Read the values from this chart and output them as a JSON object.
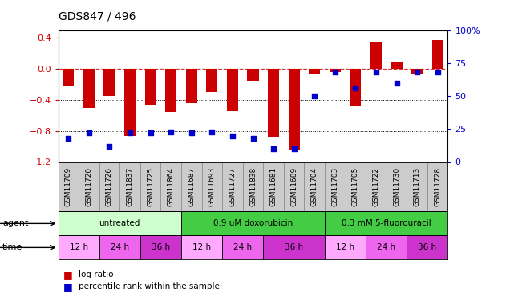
{
  "title": "GDS847 / 496",
  "samples": [
    "GSM11709",
    "GSM11720",
    "GSM11726",
    "GSM11837",
    "GSM11725",
    "GSM11864",
    "GSM11687",
    "GSM11693",
    "GSM11727",
    "GSM11838",
    "GSM11681",
    "GSM11689",
    "GSM11704",
    "GSM11703",
    "GSM11705",
    "GSM11722",
    "GSM11730",
    "GSM11713",
    "GSM11728"
  ],
  "log_ratio": [
    -0.22,
    -0.5,
    -0.35,
    -0.87,
    -0.46,
    -0.56,
    -0.44,
    -0.3,
    -0.55,
    -0.15,
    -0.88,
    -1.05,
    -0.06,
    -0.04,
    -0.47,
    0.35,
    0.09,
    -0.06,
    0.37
  ],
  "percentile_rank": [
    18,
    22,
    12,
    22,
    22,
    23,
    22,
    23,
    20,
    18,
    10,
    10,
    50,
    68,
    56,
    68,
    60,
    68,
    68
  ],
  "bar_color": "#cc0000",
  "dot_color": "#0000cc",
  "ylim_left": [
    -1.2,
    0.5
  ],
  "ylim_right": [
    0,
    100
  ],
  "yticks_left": [
    -1.2,
    -0.8,
    -0.4,
    0.0,
    0.4
  ],
  "yticks_right": [
    0,
    25,
    50,
    75,
    100
  ],
  "hline_y": 0.0,
  "dotlines": [
    -0.4,
    -0.8
  ],
  "agent_groups": [
    {
      "label": "untreated",
      "start": 0,
      "end": 6,
      "color": "#ccffcc"
    },
    {
      "label": "0.9 uM doxorubicin",
      "start": 6,
      "end": 13,
      "color": "#44cc44"
    },
    {
      "label": "0.3 mM 5-fluorouracil",
      "start": 13,
      "end": 19,
      "color": "#44cc44"
    }
  ],
  "time_groups": [
    {
      "label": "12 h",
      "start": 0,
      "end": 2,
      "color": "#ffaaff"
    },
    {
      "label": "24 h",
      "start": 2,
      "end": 4,
      "color": "#ee66ee"
    },
    {
      "label": "36 h",
      "start": 4,
      "end": 6,
      "color": "#cc33cc"
    },
    {
      "label": "12 h",
      "start": 6,
      "end": 8,
      "color": "#ffaaff"
    },
    {
      "label": "24 h",
      "start": 8,
      "end": 10,
      "color": "#ee66ee"
    },
    {
      "label": "36 h",
      "start": 10,
      "end": 13,
      "color": "#cc33cc"
    },
    {
      "label": "12 h",
      "start": 13,
      "end": 15,
      "color": "#ffaaff"
    },
    {
      "label": "24 h",
      "start": 15,
      "end": 17,
      "color": "#ee66ee"
    },
    {
      "label": "36 h",
      "start": 17,
      "end": 19,
      "color": "#cc33cc"
    }
  ],
  "background_color": "#ffffff"
}
